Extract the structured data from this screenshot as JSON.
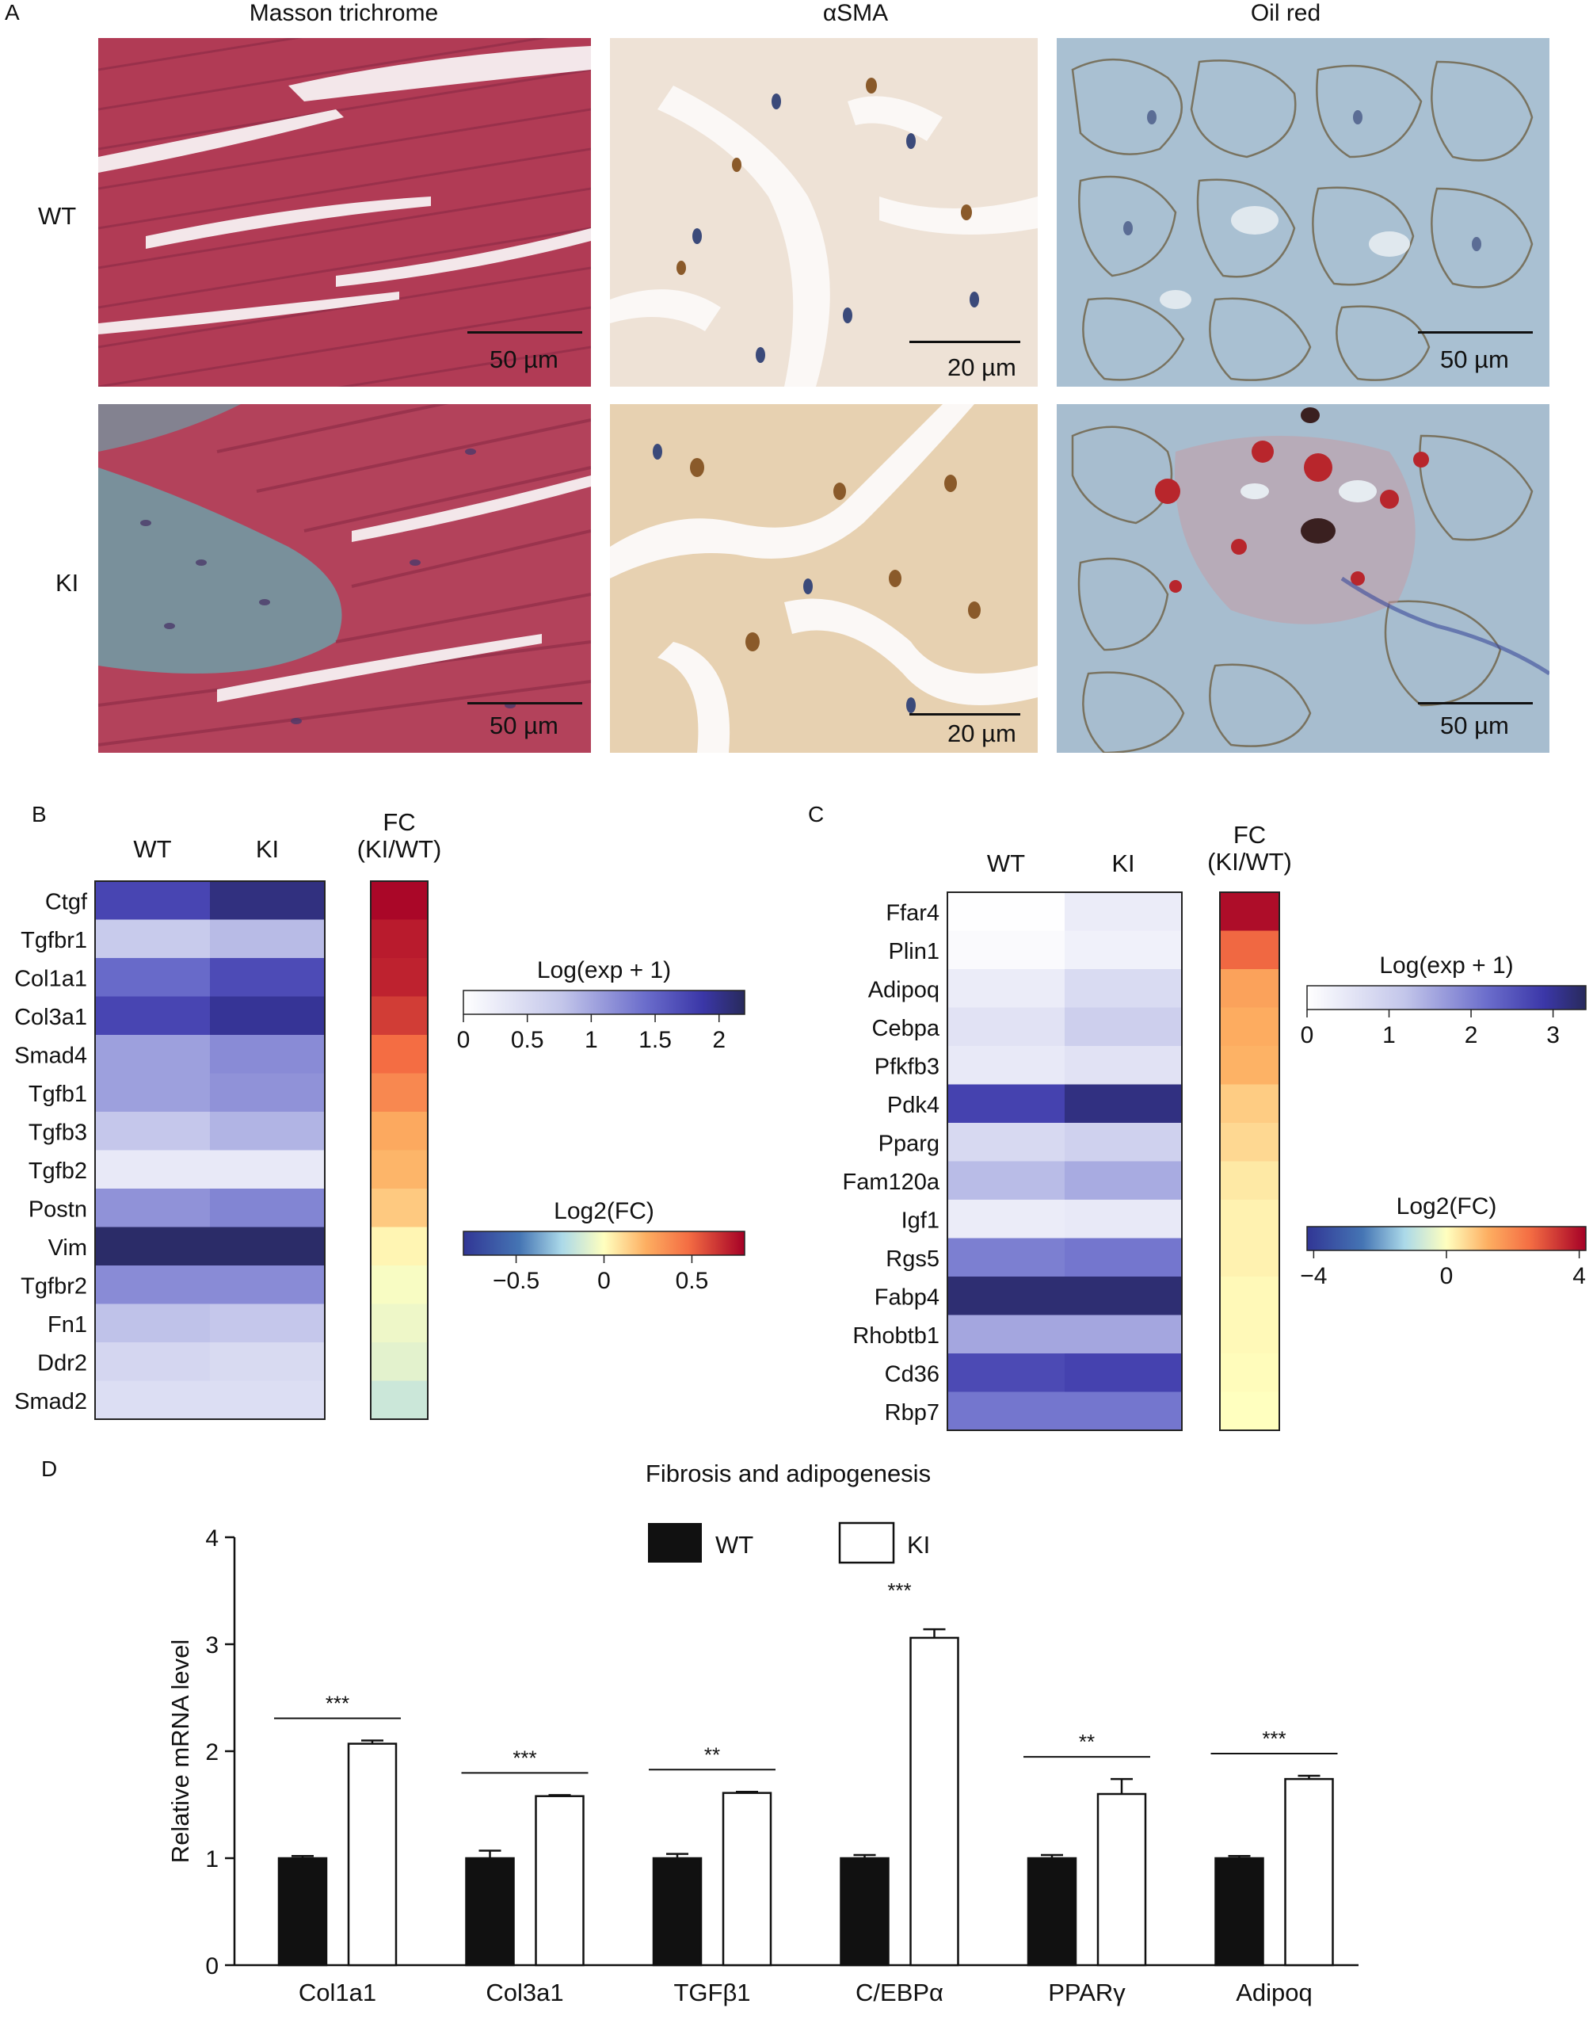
{
  "panel_a": {
    "letter": "A",
    "columns": [
      "Masson trichrome",
      "αSMA",
      "Oil red"
    ],
    "rows": [
      "WT",
      "KI"
    ],
    "scale_bars": [
      [
        "50 µm",
        "20 µm",
        "50 µm"
      ],
      [
        "50 µm",
        "20 µm",
        "50 µm"
      ]
    ]
  },
  "colors": {
    "masson_red": "#b5405a",
    "masson_blue": "#6d9ca6",
    "sma_bg": "#f2e6d8",
    "sma_ki_bg": "#e8d3b4",
    "oil_bg": "#a8bfd0",
    "oil_red": "#b8262c",
    "nucleus": "#3b4a7a",
    "brown": "#8a5a2a"
  },
  "chart_data": [
    {
      "panel": "B",
      "type": "heatmap",
      "columns": [
        "WT",
        "KI"
      ],
      "rows": [
        "Ctgf",
        "Tgfbr1",
        "Col1a1",
        "Col3a1",
        "Smad4",
        "Tgfb1",
        "Tgfb3",
        "Tgfb2",
        "Postn",
        "Vim",
        "Tgfbr2",
        "Fn1",
        "Ddr2",
        "Smad2"
      ],
      "values": [
        [
          1.75,
          2.05
        ],
        [
          0.7,
          0.85
        ],
        [
          1.45,
          1.7
        ],
        [
          1.75,
          1.95
        ],
        [
          1.05,
          1.2
        ],
        [
          1.05,
          1.15
        ],
        [
          0.75,
          0.9
        ],
        [
          0.3,
          0.3
        ],
        [
          1.15,
          1.25
        ],
        [
          2.15,
          2.15
        ],
        [
          1.2,
          1.2
        ],
        [
          0.8,
          0.75
        ],
        [
          0.55,
          0.5
        ],
        [
          0.45,
          0.45
        ]
      ],
      "fc_title": "FC\n(KI/WT)",
      "log2fc": [
        0.78,
        0.72,
        0.7,
        0.62,
        0.48,
        0.38,
        0.26,
        0.22,
        0.16,
        0.03,
        -0.02,
        -0.05,
        -0.08,
        -0.15
      ],
      "expr_legend": {
        "title": "Log(exp + 1)",
        "ticks": [
          "0",
          "0.5",
          "1",
          "1.5",
          "2"
        ],
        "range": [
          0,
          2.2
        ]
      },
      "fc_legend": {
        "title": "Log2(FC)",
        "ticks": [
          "−0.5",
          "0",
          "0.5"
        ],
        "range": [
          -0.8,
          0.8
        ]
      }
    },
    {
      "panel": "C",
      "type": "heatmap",
      "columns": [
        "WT",
        "KI"
      ],
      "rows": [
        "Ffar4",
        "Plin1",
        "Adipoq",
        "Cebpa",
        "Pfkfb3",
        "Pdk4",
        "Pparg",
        "Fam120a",
        "Igf1",
        "Rgs5",
        "Fabp4",
        "Rhobtb1",
        "Cd36",
        "Rbp7"
      ],
      "values": [
        [
          0.02,
          0.4
        ],
        [
          0.1,
          0.3
        ],
        [
          0.4,
          0.75
        ],
        [
          0.6,
          1.0
        ],
        [
          0.45,
          0.6
        ],
        [
          2.75,
          3.15
        ],
        [
          0.8,
          0.95
        ],
        [
          1.3,
          1.5
        ],
        [
          0.4,
          0.45
        ],
        [
          2.0,
          2.1
        ],
        [
          3.25,
          3.25
        ],
        [
          1.55,
          1.55
        ],
        [
          2.65,
          2.75
        ],
        [
          2.1,
          2.1
        ]
      ],
      "fc_title": "FC\n(KI/WT)",
      "log2fc": [
        4.0,
        2.6,
        1.5,
        1.3,
        1.2,
        0.8,
        0.6,
        0.35,
        0.2,
        0.2,
        0.1,
        0.1,
        0.05,
        0.0
      ],
      "expr_legend": {
        "title": "Log(exp + 1)",
        "ticks": [
          "0",
          "1",
          "2",
          "3"
        ],
        "range": [
          0,
          3.4
        ]
      },
      "fc_legend": {
        "title": "Log2(FC)",
        "ticks": [
          "−4",
          "0",
          "4"
        ],
        "range": [
          -4.2,
          4.2
        ]
      }
    },
    {
      "panel": "D",
      "type": "bar",
      "title": "Fibrosis and adipogenesis",
      "ylabel": "Relative mRNA level",
      "ylim": [
        0,
        4
      ],
      "yticks": [
        "0",
        "1",
        "2",
        "3",
        "4"
      ],
      "categories": [
        "Col1a1",
        "Col3a1",
        "TGFβ1",
        "C/EBPα",
        "PPARγ",
        "Adipoq"
      ],
      "series": [
        {
          "name": "WT",
          "values": [
            1.0,
            1.0,
            1.0,
            1.0,
            1.0,
            1.0
          ],
          "errors": [
            0.02,
            0.07,
            0.04,
            0.03,
            0.03,
            0.02
          ]
        },
        {
          "name": "KI",
          "values": [
            2.07,
            1.58,
            1.61,
            3.06,
            1.6,
            1.74
          ],
          "errors": [
            0.03,
            0.01,
            0.01,
            0.08,
            0.14,
            0.03
          ]
        }
      ],
      "significance": [
        "***",
        "***",
        "**",
        "***",
        "**",
        "***"
      ]
    }
  ]
}
